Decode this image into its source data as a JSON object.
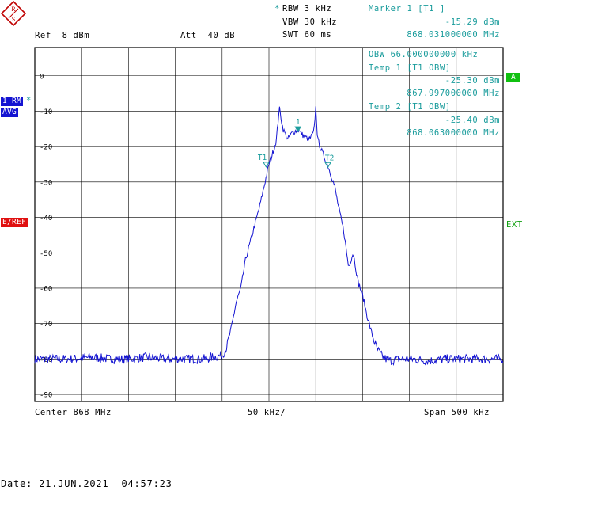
{
  "header": {
    "rbw": "RBW 3 kHz",
    "vbw": "VBW 30 kHz",
    "swt": "SWT 60 ms",
    "ref": "Ref  8 dBm",
    "att": "Att  40 dB",
    "marker_title": "Marker 1 [T1 ]",
    "marker_level": "-15.29 dBm",
    "marker_freq": "868.031000000 MHz"
  },
  "badges": {
    "trace": "1 RM",
    "avg": "AVG",
    "eref": "E/REF",
    "a": "A",
    "ext": "EXT"
  },
  "info": {
    "obw": "OBW 66.000000000 kHz",
    "temp1_title": "Temp 1 [T1 OBW]",
    "temp1_level": "-25.30 dBm",
    "temp1_freq": "867.997000000 MHz",
    "temp2_title": "Temp 2 [T1 OBW]",
    "temp2_level": "-25.40 dBm",
    "temp2_freq": "868.063000000 MHz"
  },
  "footer": {
    "center": "Center 868 MHz",
    "div": "50 kHz/",
    "span": "Span 500 kHz",
    "date": "Date: 21.JUN.2021  04:57:23"
  },
  "colors": {
    "trace": "#1414d2",
    "marker": "#1a9c9c",
    "eref": "#e01010",
    "badge_blue": "#1414d2",
    "badge_green": "#10c010"
  },
  "chart_data": {
    "type": "line",
    "title": "",
    "xlabel": "",
    "ylabel": "",
    "xlim": [
      867.75,
      868.25
    ],
    "ylim": [
      -92,
      8
    ],
    "yticks": [
      0,
      -10,
      -20,
      -30,
      -40,
      -50,
      -60,
      -70,
      -80,
      -90
    ],
    "ytick_labels": [
      "0",
      "-10",
      "-20",
      "-30",
      "-40",
      "-50",
      "-60",
      "-70",
      "-80",
      "-90"
    ],
    "grid": true,
    "series": [
      {
        "x": [
          867.75,
          867.77,
          867.79,
          867.81,
          867.83,
          867.85,
          867.87,
          867.89,
          867.91,
          867.93,
          867.95,
          867.955,
          867.96,
          867.965,
          867.97,
          867.975,
          867.98,
          867.985,
          867.99,
          867.995,
          868.0,
          868.005,
          868.008,
          868.011,
          868.015,
          868.02,
          868.025,
          868.031,
          868.037,
          868.043,
          868.048,
          868.05,
          868.052,
          868.056,
          868.063,
          868.07,
          868.075,
          868.08,
          868.085,
          868.09,
          868.095,
          868.1,
          868.105,
          868.11,
          868.115,
          868.12,
          868.125,
          868.13,
          868.14,
          868.15,
          868.17,
          868.19,
          868.21,
          868.23,
          868.25
        ],
        "y": [
          -80,
          -80,
          -80,
          -79.5,
          -80,
          -80,
          -79.5,
          -80,
          -80,
          -80,
          -79,
          -76.5,
          -71,
          -64,
          -60,
          -52,
          -47,
          -42,
          -37,
          -31,
          -25,
          -21,
          -18,
          -9,
          -15,
          -18,
          -16,
          -15.3,
          -17,
          -18,
          -16,
          -9,
          -18,
          -21,
          -25.4,
          -31,
          -38,
          -44,
          -54,
          -50,
          -58,
          -62,
          -68,
          -73,
          -77,
          -79,
          -80,
          -80.5,
          -80,
          -80,
          -80.5,
          -80,
          -80,
          -80,
          -80
        ]
      }
    ],
    "annotations": [
      {
        "label": "1",
        "x": 868.031,
        "y": -15.29
      },
      {
        "label": "T1",
        "x": 867.997,
        "y": -25.3
      },
      {
        "label": "T2",
        "x": 868.063,
        "y": -25.4
      }
    ]
  }
}
